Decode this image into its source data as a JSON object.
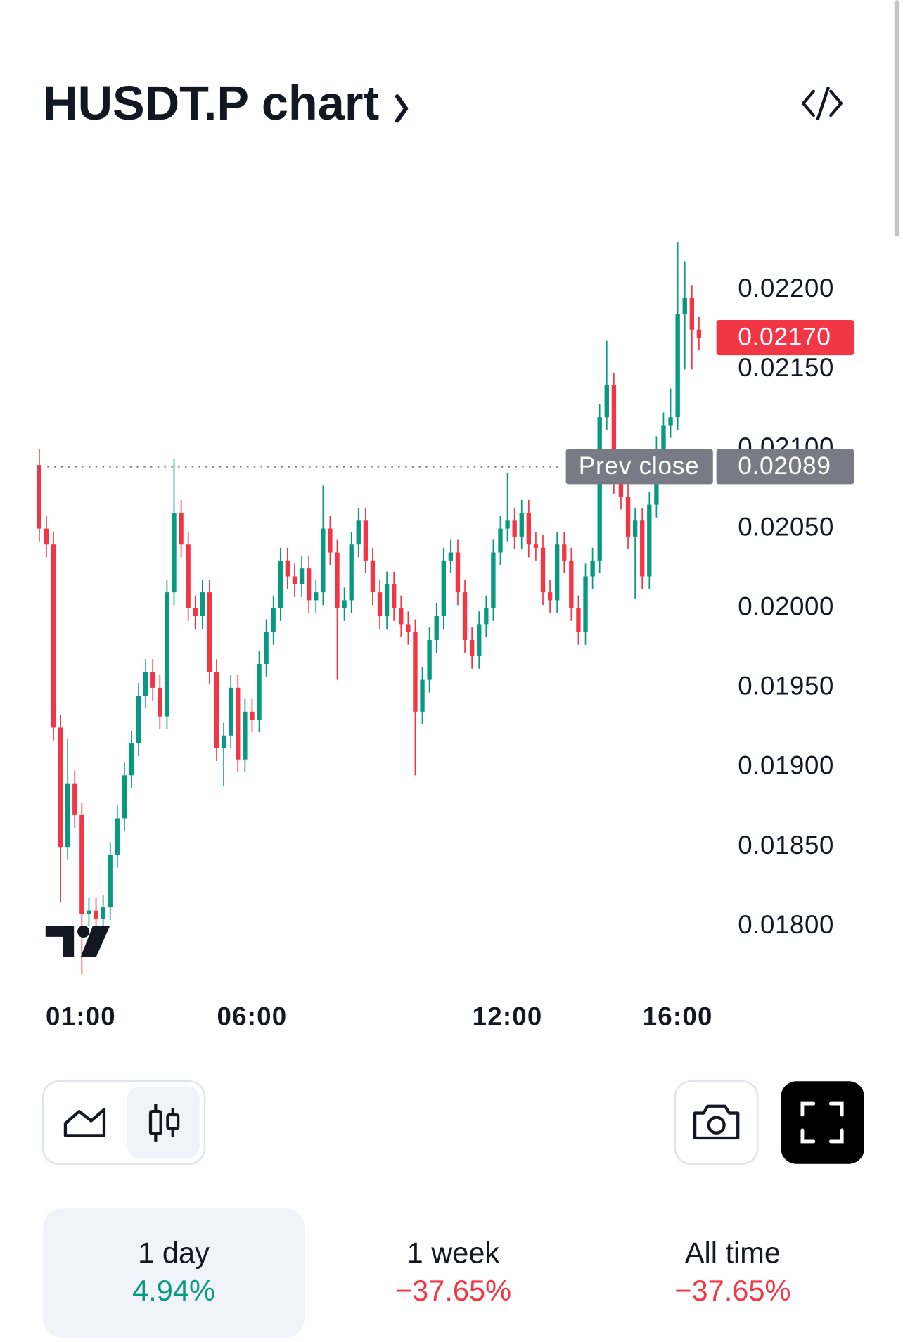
{
  "header": {
    "title": "HUSDT.P chart"
  },
  "chart_data": {
    "type": "candlestick",
    "x": [
      60,
      70,
      80,
      90,
      100,
      110,
      120,
      130,
      140,
      150,
      160,
      170,
      180,
      190,
      200,
      210,
      220,
      230,
      240,
      250,
      260,
      270,
      280,
      290,
      300,
      310,
      320,
      330,
      340,
      350,
      360,
      370,
      380,
      390,
      400,
      410,
      420,
      430,
      440,
      450,
      460,
      470,
      480,
      490,
      500,
      510,
      520,
      530,
      540,
      550,
      560,
      570,
      580,
      590,
      600,
      610,
      620,
      630,
      640,
      650,
      660,
      670,
      680,
      690,
      700,
      710,
      720,
      730,
      740,
      750,
      760,
      770,
      780,
      790,
      800,
      810,
      820,
      830,
      840,
      850,
      860,
      870,
      880,
      890,
      900,
      910,
      920,
      930,
      940,
      950,
      960,
      970,
      980,
      990
    ],
    "open": [
      0.0209,
      0.0205,
      0.0204,
      0.01925,
      0.0185,
      0.0189,
      0.0187,
      0.01808,
      0.0181,
      0.01805,
      0.01812,
      0.01845,
      0.01868,
      0.01895,
      0.01915,
      0.01945,
      0.0196,
      0.0195,
      0.01932,
      0.0201,
      0.0206,
      0.0204,
      0.02,
      0.01995,
      0.0201,
      0.0196,
      0.01912,
      0.0192,
      0.0195,
      0.01905,
      0.01935,
      0.0193,
      0.01965,
      0.01985,
      0.02,
      0.0203,
      0.0202,
      0.02015,
      0.02025,
      0.02005,
      0.0201,
      0.0205,
      0.02035,
      0.02,
      0.02005,
      0.0204,
      0.02055,
      0.0203,
      0.0201,
      0.01995,
      0.02015,
      0.02,
      0.0199,
      0.01985,
      0.01935,
      0.01955,
      0.0198,
      0.01995,
      0.0203,
      0.02035,
      0.0201,
      0.0198,
      0.0197,
      0.0199,
      0.02,
      0.02035,
      0.0205,
      0.02055,
      0.02045,
      0.0206,
      0.0204,
      0.02038,
      0.0201,
      0.02005,
      0.0204,
      0.0203,
      0.02,
      0.01985,
      0.0202,
      0.0203,
      0.0212,
      0.0214,
      0.0208,
      0.0207,
      0.02045,
      0.02055,
      0.0202,
      0.02065,
      0.021,
      0.02115,
      0.0212,
      0.02185,
      0.02195,
      0.02175
    ],
    "high": [
      0.021,
      0.02058,
      0.02048,
      0.01933,
      0.01918,
      0.01898,
      0.01878,
      0.01818,
      0.01818,
      0.0182,
      0.01853,
      0.01876,
      0.01903,
      0.01923,
      0.01953,
      0.01968,
      0.01968,
      0.01958,
      0.02018,
      0.02094,
      0.02068,
      0.02048,
      0.02008,
      0.02018,
      0.02018,
      0.01968,
      0.01928,
      0.01958,
      0.01958,
      0.01943,
      0.01943,
      0.01973,
      0.01993,
      0.02008,
      0.02038,
      0.02038,
      0.02028,
      0.02033,
      0.02033,
      0.02018,
      0.02077,
      0.02058,
      0.02043,
      0.02013,
      0.02048,
      0.02063,
      0.02063,
      0.02038,
      0.02018,
      0.02023,
      0.02023,
      0.02008,
      0.01998,
      0.01993,
      0.01963,
      0.01988,
      0.02003,
      0.02038,
      0.02043,
      0.02043,
      0.02018,
      0.01988,
      0.01998,
      0.02008,
      0.02043,
      0.02058,
      0.02085,
      0.02063,
      0.02068,
      0.02068,
      0.02048,
      0.02046,
      0.02018,
      0.02048,
      0.02048,
      0.02038,
      0.02008,
      0.02028,
      0.02038,
      0.02128,
      0.02168,
      0.02148,
      0.02088,
      0.02078,
      0.02063,
      0.02063,
      0.02073,
      0.02108,
      0.02123,
      0.02138,
      0.0223,
      0.02218,
      0.02203,
      0.02183
    ],
    "low": [
      0.02042,
      0.02032,
      0.01917,
      0.01815,
      0.01842,
      0.01862,
      0.0177,
      0.018,
      0.01797,
      0.01797,
      0.01804,
      0.01837,
      0.0186,
      0.01887,
      0.01907,
      0.01937,
      0.01942,
      0.01924,
      0.01924,
      0.02002,
      0.02032,
      0.01992,
      0.01987,
      0.01987,
      0.01952,
      0.01904,
      0.01888,
      0.01912,
      0.01897,
      0.01897,
      0.01922,
      0.01922,
      0.01957,
      0.01977,
      0.01992,
      0.02012,
      0.02007,
      0.02007,
      0.01997,
      0.01997,
      0.02002,
      0.02027,
      0.01955,
      0.01992,
      0.01997,
      0.02032,
      0.02022,
      0.02002,
      0.01987,
      0.01987,
      0.01992,
      0.01982,
      0.01977,
      0.01895,
      0.01927,
      0.01947,
      0.01972,
      0.01987,
      0.02022,
      0.02002,
      0.01972,
      0.01962,
      0.01962,
      0.01982,
      0.01992,
      0.02027,
      0.02042,
      0.02037,
      0.02037,
      0.02032,
      0.0203,
      0.02002,
      0.01997,
      0.01997,
      0.02022,
      0.01992,
      0.01977,
      0.01977,
      0.02012,
      0.02022,
      0.02112,
      0.02072,
      0.02062,
      0.02037,
      0.02006,
      0.02012,
      0.02012,
      0.02057,
      0.02092,
      0.02107,
      0.02112,
      0.0215,
      0.0215,
      0.02162
    ],
    "close": [
      0.0205,
      0.0204,
      0.01925,
      0.0185,
      0.0189,
      0.0187,
      0.01808,
      0.0181,
      0.01805,
      0.01812,
      0.01845,
      0.01868,
      0.01895,
      0.01915,
      0.01945,
      0.0196,
      0.0195,
      0.01932,
      0.0201,
      0.0206,
      0.0204,
      0.02,
      0.01995,
      0.0201,
      0.0196,
      0.01912,
      0.0192,
      0.0195,
      0.01905,
      0.01935,
      0.0193,
      0.01965,
      0.01985,
      0.02,
      0.0203,
      0.0202,
      0.02015,
      0.02025,
      0.02005,
      0.0201,
      0.0205,
      0.02035,
      0.02,
      0.02005,
      0.0204,
      0.02055,
      0.0203,
      0.0201,
      0.01995,
      0.02015,
      0.02,
      0.0199,
      0.01985,
      0.01935,
      0.01955,
      0.0198,
      0.01995,
      0.0203,
      0.02035,
      0.0201,
      0.0198,
      0.0197,
      0.0199,
      0.02,
      0.02035,
      0.0205,
      0.02055,
      0.02045,
      0.0206,
      0.0204,
      0.02038,
      0.0201,
      0.02005,
      0.0204,
      0.0203,
      0.02,
      0.01985,
      0.0202,
      0.0203,
      0.0212,
      0.0214,
      0.0208,
      0.0207,
      0.02045,
      0.02055,
      0.0202,
      0.02065,
      0.021,
      0.02115,
      0.0212,
      0.02185,
      0.02195,
      0.02175,
      0.0217
    ],
    "up_color": "#089981",
    "down_color": "#f23645",
    "xlim": [
      41,
      1023
    ],
    "xticks": [
      {
        "value": 60,
        "label": "01:00"
      },
      {
        "value": 360,
        "label": "06:00"
      },
      {
        "value": 720,
        "label": "12:00"
      },
      {
        "value": 960,
        "label": "16:00"
      }
    ],
    "ylim": [
      0.01766,
      0.02274
    ],
    "yticks": [
      {
        "value": 0.018,
        "label": "0.01800"
      },
      {
        "value": 0.0185,
        "label": "0.01850"
      },
      {
        "value": 0.019,
        "label": "0.01900"
      },
      {
        "value": 0.0195,
        "label": "0.01950"
      },
      {
        "value": 0.02,
        "label": "0.02000"
      },
      {
        "value": 0.0205,
        "label": "0.02050"
      },
      {
        "value": 0.021,
        "label": "0.02100"
      },
      {
        "value": 0.0215,
        "label": "0.02150"
      },
      {
        "value": 0.022,
        "label": "0.02200"
      }
    ],
    "last_price": {
      "value": 0.0217,
      "label": "0.02170"
    },
    "prev_close": {
      "name": "Prev close",
      "value": 0.02089,
      "label": "0.02089"
    }
  },
  "periods": [
    {
      "label": "1 day",
      "change": "4.94%"
    },
    {
      "label": "1 week",
      "change": "−37.65%"
    },
    {
      "label": "All time",
      "change": "−37.65%"
    }
  ]
}
